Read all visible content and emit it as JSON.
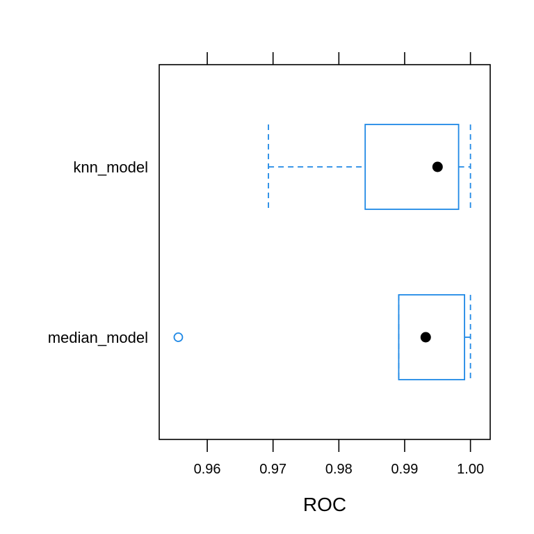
{
  "chart_data": {
    "type": "boxplot",
    "orientation": "horizontal",
    "title": "",
    "xlabel": "ROC",
    "ylabel": "",
    "xlim": [
      0.9527,
      1.003
    ],
    "xticks": [
      0.96,
      0.97,
      0.98,
      0.99,
      1.0
    ],
    "xtick_labels": [
      "0.96",
      "0.97",
      "0.98",
      "0.99",
      "1.00"
    ],
    "grid": false,
    "box_color": "#1E88E5",
    "median_color": "#000000",
    "categories": [
      "knn_model",
      "median_model"
    ],
    "series": [
      {
        "name": "knn_model",
        "whisker_low": 0.9693,
        "q1": 0.984,
        "median": 0.995,
        "q3": 0.9982,
        "whisker_high": 1.0,
        "outliers": []
      },
      {
        "name": "median_model",
        "whisker_low": 0.9891,
        "q1": 0.9891,
        "median": 0.9932,
        "q3": 0.9991,
        "whisker_high": 1.0,
        "outliers": [
          0.9556
        ]
      }
    ]
  }
}
